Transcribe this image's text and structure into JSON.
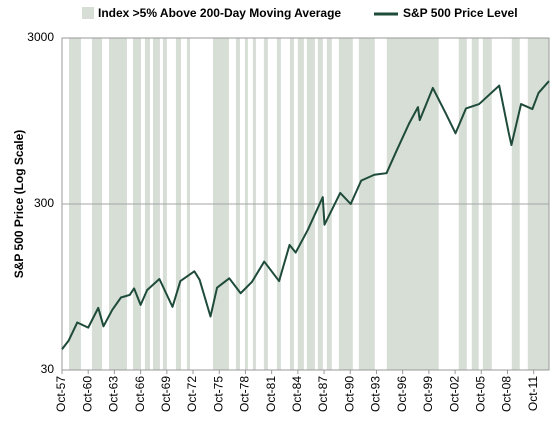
{
  "chart_data": {
    "type": "line",
    "y_label": "S&P 500 Price (Log Scale)",
    "log_y": true,
    "grid": true,
    "ylim": [
      30,
      3000
    ],
    "yticks": [
      30,
      300,
      3000
    ],
    "xlim": [
      1957.75,
      2013.5
    ],
    "xticks": [
      {
        "value": 1957.75,
        "label": "Oct-57"
      },
      {
        "value": 1960.75,
        "label": "Oct-60"
      },
      {
        "value": 1963.75,
        "label": "Oct-63"
      },
      {
        "value": 1966.75,
        "label": "Oct-66"
      },
      {
        "value": 1969.75,
        "label": "Oct-69"
      },
      {
        "value": 1972.75,
        "label": "Oct-72"
      },
      {
        "value": 1975.75,
        "label": "Oct-75"
      },
      {
        "value": 1978.75,
        "label": "Oct-78"
      },
      {
        "value": 1981.75,
        "label": "Oct-81"
      },
      {
        "value": 1984.75,
        "label": "Oct-84"
      },
      {
        "value": 1987.75,
        "label": "Oct-87"
      },
      {
        "value": 1990.75,
        "label": "Oct-90"
      },
      {
        "value": 1993.75,
        "label": "Oct-93"
      },
      {
        "value": 1996.75,
        "label": "Oct-96"
      },
      {
        "value": 1999.75,
        "label": "Oct-99"
      },
      {
        "value": 2002.75,
        "label": "Oct-02"
      },
      {
        "value": 2005.75,
        "label": "Oct-05"
      },
      {
        "value": 2008.75,
        "label": "Oct-08"
      },
      {
        "value": 2011.75,
        "label": "Oct-11"
      }
    ],
    "regions": {
      "name": "Index >5% Above 200-Day Moving Average",
      "color": "#d7ded6",
      "ranges": [
        [
          1958.55,
          1959.92
        ],
        [
          1961.18,
          1962.33
        ],
        [
          1963.13,
          1965.19
        ],
        [
          1965.87,
          1966.79
        ],
        [
          1967.25,
          1967.82
        ],
        [
          1968.16,
          1968.96
        ],
        [
          1969.3,
          1969.76
        ],
        [
          1970.79,
          1971.37
        ],
        [
          1972.05,
          1972.4
        ],
        [
          1975.03,
          1976.86
        ],
        [
          1977.66,
          1978.12
        ],
        [
          1978.69,
          1979.03
        ],
        [
          1979.6,
          1979.95
        ],
        [
          1980.86,
          1981.32
        ],
        [
          1982.35,
          1982.81
        ],
        [
          1983.84,
          1984.3
        ],
        [
          1984.75,
          1985.44
        ],
        [
          1985.78,
          1986.7
        ],
        [
          1987.04,
          1987.61
        ],
        [
          1988.07,
          1988.64
        ],
        [
          1989.44,
          1991.04
        ],
        [
          1991.73,
          1993.56
        ],
        [
          1994.93,
          2000.88
        ],
        [
          2003.17,
          2004.09
        ],
        [
          2004.66,
          2005.46
        ],
        [
          2005.92,
          2006.95
        ],
        [
          2009.24,
          2010.15
        ],
        [
          2011.07,
          2013.47
        ]
      ]
    },
    "x": [
      1957.75,
      1958.5,
      1959.5,
      1960.75,
      1961.9,
      1962.5,
      1963.5,
      1964.5,
      1965.5,
      1966.0,
      1966.75,
      1967.5,
      1968.9,
      1970.4,
      1971.3,
      1972.9,
      1973.5,
      1974.75,
      1975.5,
      1976.9,
      1978.2,
      1979.5,
      1980.9,
      1982.6,
      1983.8,
      1984.5,
      1985.9,
      1987.6,
      1987.8,
      1989.6,
      1990.8,
      1992.0,
      1993.5,
      1994.9,
      1996.0,
      1997.5,
      1998.5,
      1998.7,
      2000.2,
      2001.7,
      2002.8,
      2004.0,
      2005.5,
      2007.8,
      2008.9,
      2009.2,
      2010.3,
      2011.6,
      2012.3,
      2013.5
    ],
    "series": [
      {
        "name": "S&P 500 Price Level",
        "color": "#1e4b3a",
        "values": [
          40,
          45,
          58,
          54,
          71,
          55,
          69,
          82,
          85,
          93,
          74,
          91,
          106,
          72,
          103,
          118,
          105,
          63,
          94,
          107,
          87,
          102,
          135,
          103,
          170,
          153,
          210,
          330,
          225,
          350,
          300,
          415,
          450,
          460,
          620,
          920,
          1150,
          960,
          1500,
          1050,
          800,
          1130,
          1200,
          1550,
          800,
          680,
          1200,
          1120,
          1400,
          1650
        ]
      }
    ]
  }
}
